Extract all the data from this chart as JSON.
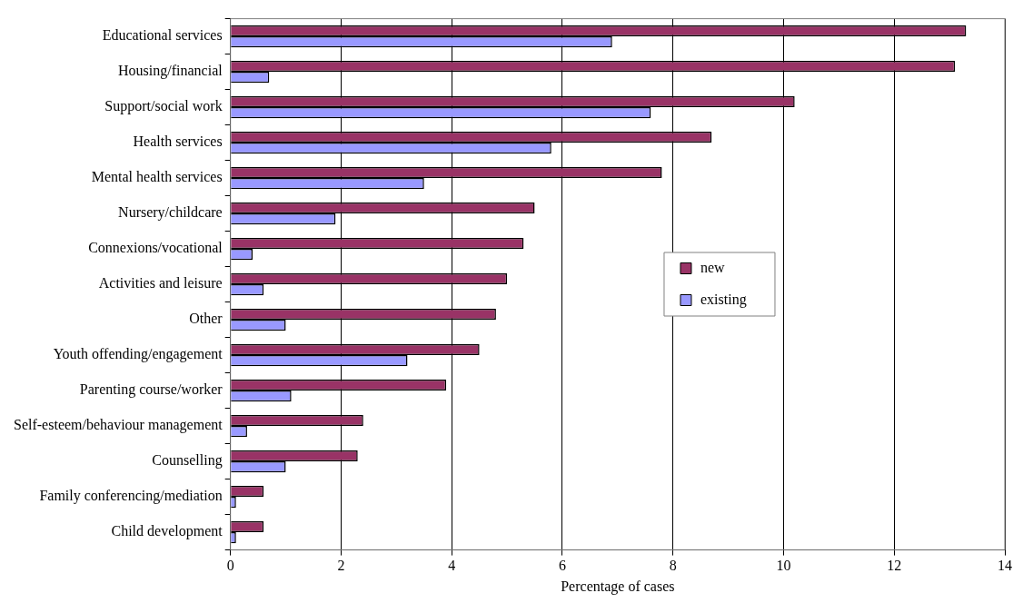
{
  "chart_data": {
    "type": "bar",
    "orientation": "horizontal",
    "xlabel": "Percentage of cases",
    "categories": [
      "Educational services",
      "Housing/financial",
      "Support/social work",
      "Health services",
      "Mental health services",
      "Nursery/childcare",
      "Connexions/vocational",
      "Activities and leisure",
      "Other",
      "Youth offending/engagement",
      "Parenting course/worker",
      "Self-esteem/behaviour management",
      "Counselling",
      "Family conferencing/mediation",
      "Child development"
    ],
    "series": [
      {
        "name": "new",
        "color": "#993366",
        "values": [
          13.3,
          13.1,
          10.2,
          8.7,
          7.8,
          5.5,
          5.3,
          5.0,
          4.8,
          4.5,
          3.9,
          2.4,
          2.3,
          0.6,
          0.6
        ]
      },
      {
        "name": "existing",
        "color": "#9999ff",
        "values": [
          6.9,
          0.7,
          7.6,
          5.8,
          3.5,
          1.9,
          0.4,
          0.6,
          1.0,
          3.2,
          1.1,
          0.3,
          1.0,
          0.1,
          0.1
        ]
      }
    ],
    "xlim": [
      0,
      14
    ],
    "xticks": [
      0,
      2,
      4,
      6,
      8,
      10,
      12,
      14
    ],
    "grid": "x",
    "legend": "right"
  }
}
